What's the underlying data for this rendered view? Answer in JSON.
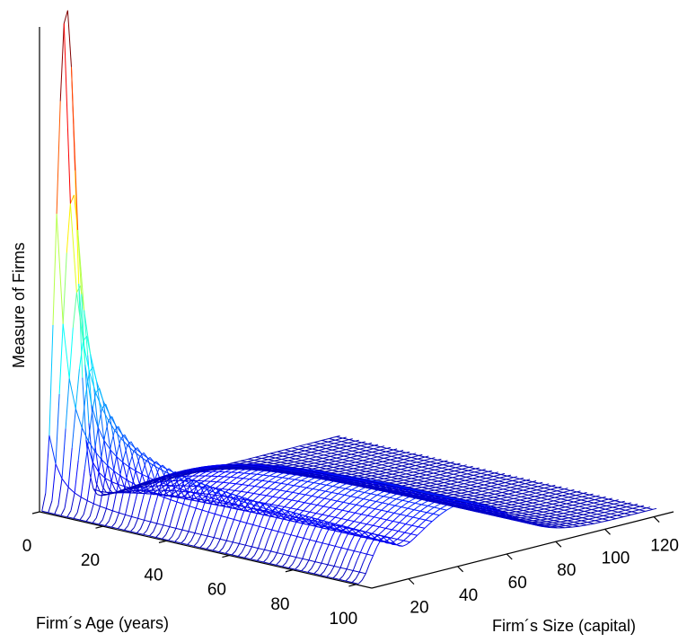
{
  "chart_data": {
    "type": "surface",
    "title": "",
    "xlabel": "Firm´s Age (years)",
    "ylabel": "Firm´s Size (capital)",
    "zlabel": "Measure of Firms",
    "x_ticks": [
      "0",
      "20",
      "40",
      "60",
      "80",
      "100"
    ],
    "y_ticks": [
      "20",
      "40",
      "60",
      "80",
      "100",
      "120"
    ],
    "xlim": [
      0,
      105
    ],
    "ylim": [
      5,
      128
    ],
    "zlim": [
      0,
      1
    ],
    "colormap": "jet",
    "grid": false,
    "legend": "none",
    "surface": {
      "description_values": [
        {
          "age": 0,
          "size": 16,
          "measure": 1.0
        },
        {
          "age": 5,
          "size": 16,
          "measure": 0.54
        },
        {
          "age": 10,
          "size": 16,
          "measure": 0.42
        },
        {
          "age": 20,
          "size": 16,
          "measure": 0.22
        },
        {
          "age": 40,
          "size": 16,
          "measure": 0.1
        },
        {
          "age": 100,
          "size": 16,
          "measure": 0.03
        },
        {
          "age": 100,
          "size": 45,
          "measure": 0.12
        },
        {
          "age": 100,
          "size": 128,
          "measure": 0.0
        }
      ]
    }
  }
}
